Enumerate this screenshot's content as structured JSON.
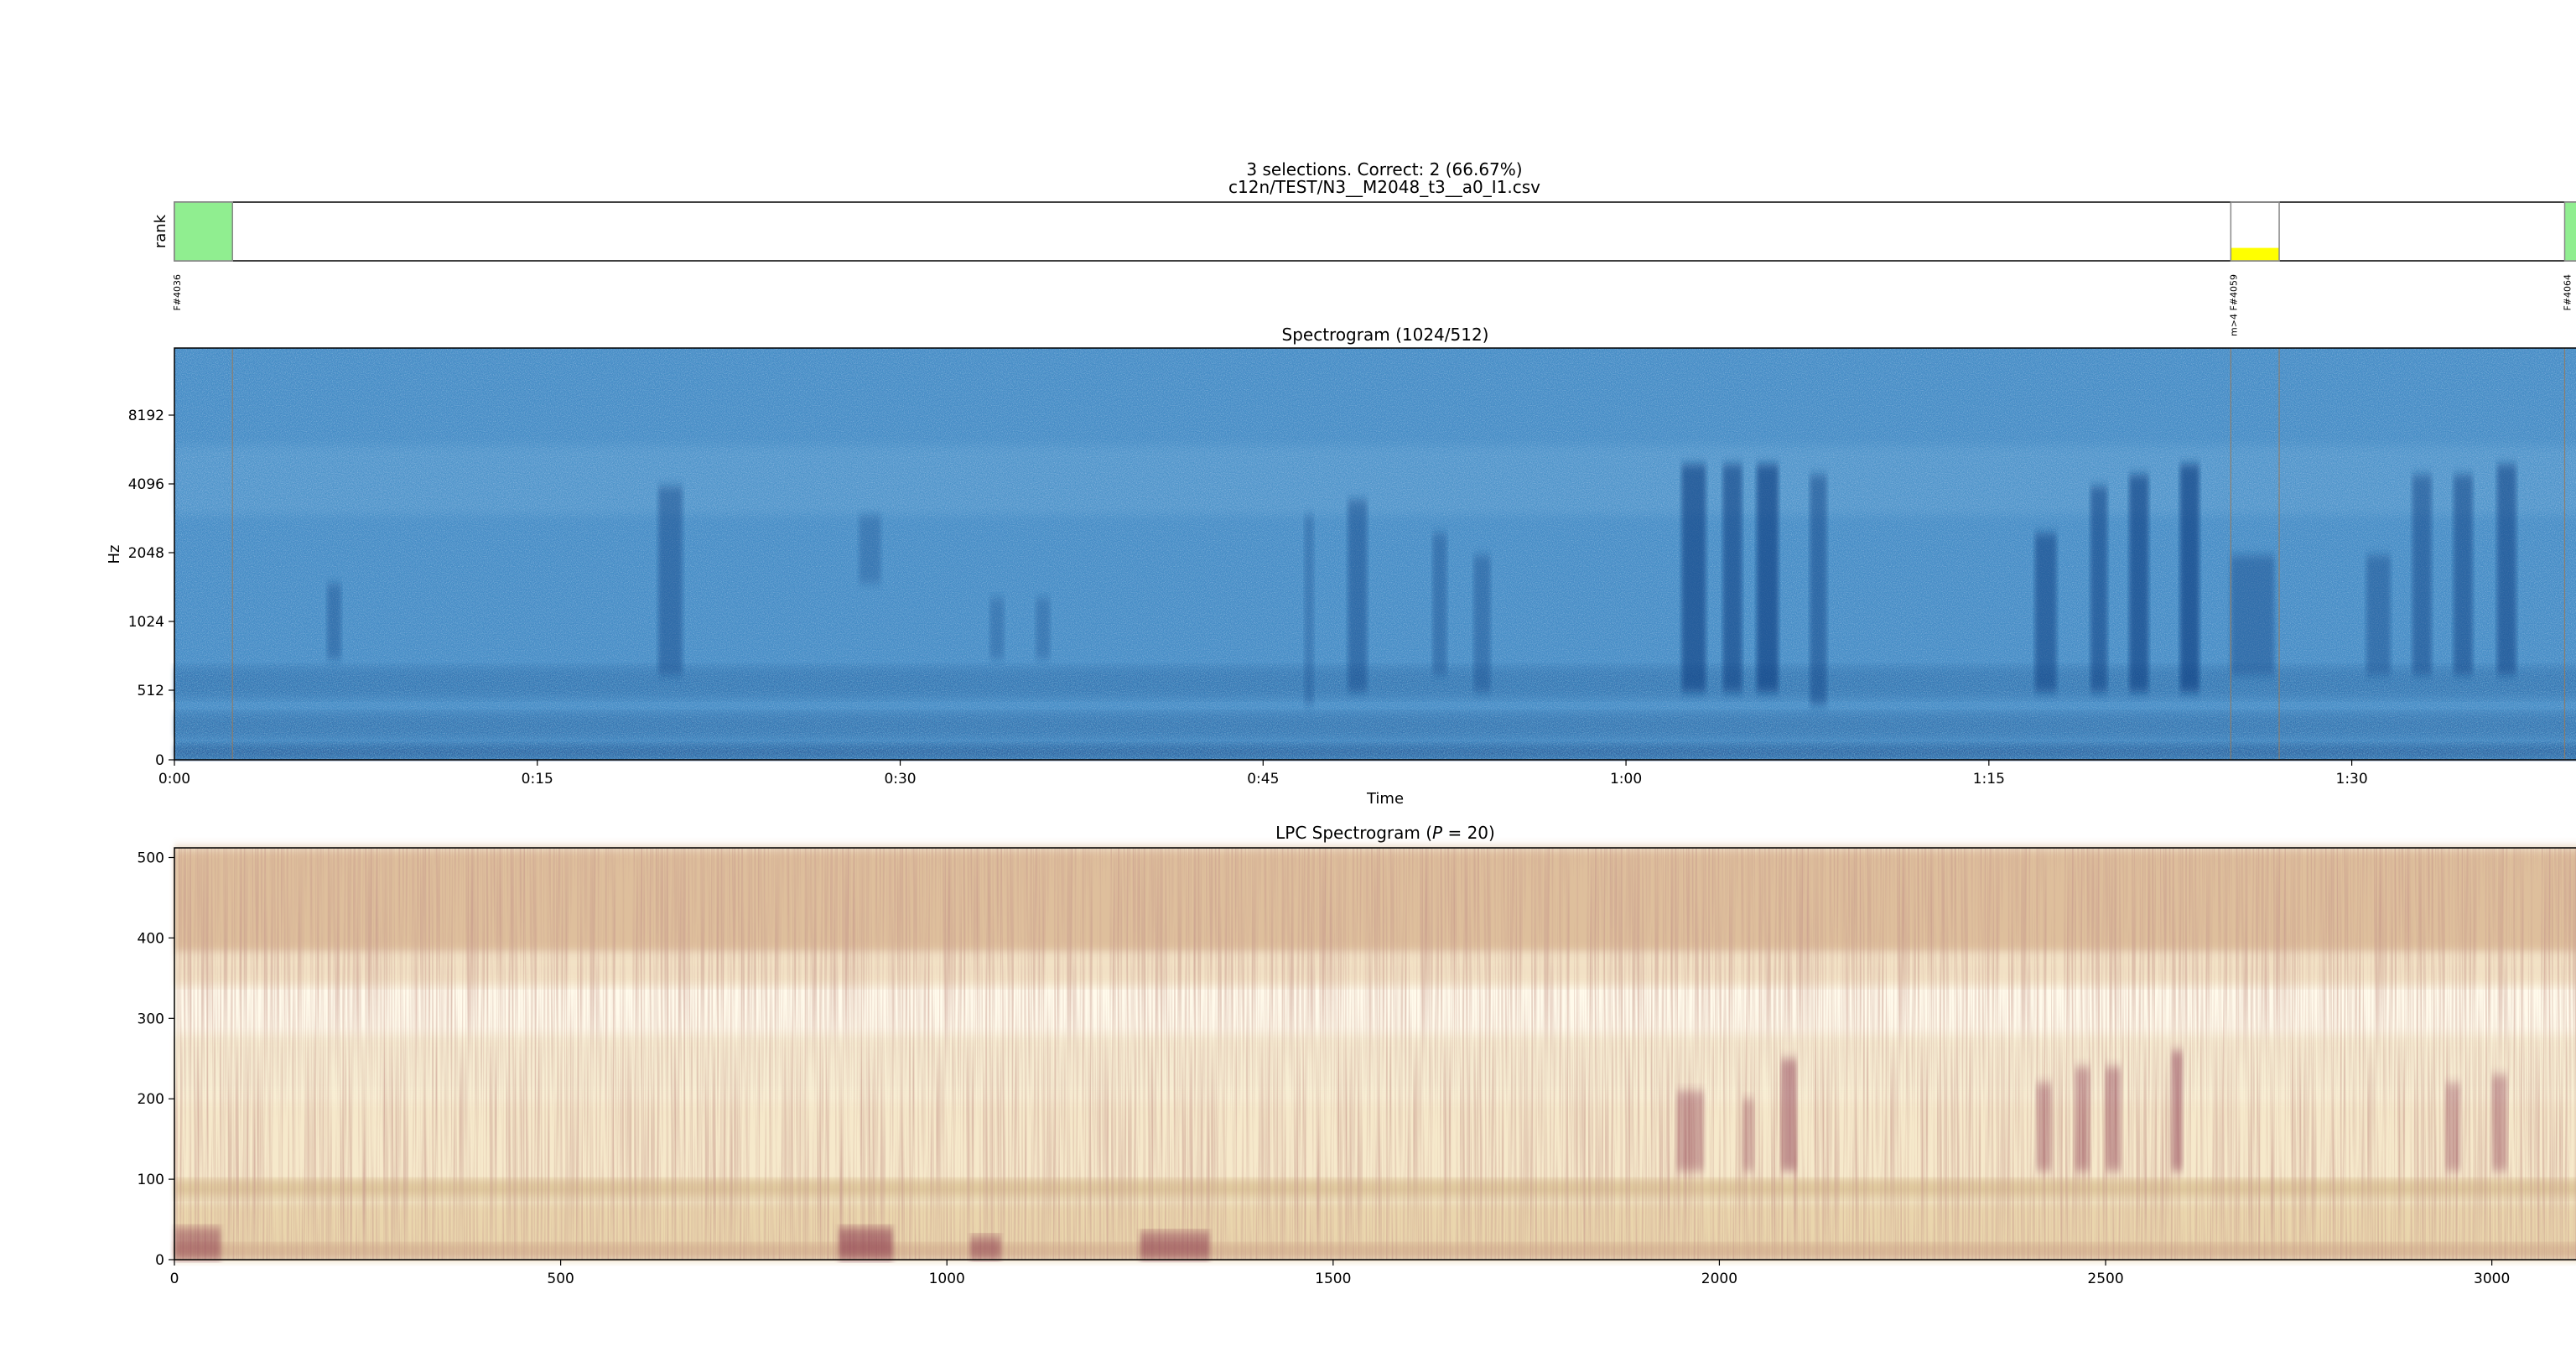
{
  "figure": {
    "title_line1": "3 selections.  Correct: 2 (66.67%)",
    "title_line2": "c12n/TEST/N3__M2048_t3__a0_I1.csv",
    "colors": {
      "correct": "#90ee90",
      "partial": "#ffff00",
      "outline": "#888888",
      "spectrogram_base": "#3a7ab8",
      "spectrogram_dark": "#0d3d80",
      "lpc_light": "#fffaeb",
      "lpc_mid": "#e6cf9c",
      "lpc_dark": "#7a1f3d"
    }
  },
  "chart_data": [
    {
      "type": "bar",
      "panel": "selections",
      "ylabel": "rank",
      "xlim_seconds": [
        0,
        100.1
      ],
      "selections": [
        {
          "label": "F#4036",
          "start": 0.0,
          "end": 2.4,
          "status": "correct",
          "fill_fraction": 1.0
        },
        {
          "label": "m>4 F#4059",
          "start": 85.0,
          "end": 87.0,
          "status": "partial",
          "fill_fraction": 0.22
        },
        {
          "label": "F#4064",
          "start": 98.8,
          "end": 100.1,
          "status": "correct",
          "fill_fraction": 1.0
        }
      ]
    },
    {
      "type": "heatmap",
      "panel": "spectrogram",
      "title": "Spectrogram (1024/512)",
      "xlabel": "Time",
      "ylabel": "Hz",
      "xlim_seconds": [
        0,
        100.1
      ],
      "x_ticks": [
        {
          "value": 0,
          "label": "0:00"
        },
        {
          "value": 15,
          "label": "0:15"
        },
        {
          "value": 30,
          "label": "0:30"
        },
        {
          "value": 45,
          "label": "0:45"
        },
        {
          "value": 60,
          "label": "1:00"
        },
        {
          "value": 75,
          "label": "1:15"
        },
        {
          "value": 90,
          "label": "1:30"
        }
      ],
      "y_scale": "log",
      "y_ticks": [
        {
          "value": 0,
          "label": "0"
        },
        {
          "value": 512,
          "label": "512"
        },
        {
          "value": 1024,
          "label": "1024"
        },
        {
          "value": 2048,
          "label": "2048"
        },
        {
          "value": 4096,
          "label": "4096"
        },
        {
          "value": 8192,
          "label": "8192"
        }
      ],
      "selection_markers_seconds": [
        2.4,
        85.0,
        87.0,
        98.8
      ],
      "events": [
        {
          "start": 6.3,
          "end": 6.9,
          "fmin": 700,
          "fmax": 1500,
          "strength": 0.45
        },
        {
          "start": 20.0,
          "end": 21.0,
          "fmin": 600,
          "fmax": 4000,
          "strength": 0.55
        },
        {
          "start": 28.3,
          "end": 29.2,
          "fmin": 1500,
          "fmax": 3000,
          "strength": 0.35
        },
        {
          "start": 33.7,
          "end": 34.3,
          "fmin": 700,
          "fmax": 1300,
          "strength": 0.35
        },
        {
          "start": 35.6,
          "end": 36.2,
          "fmin": 700,
          "fmax": 1300,
          "strength": 0.35
        },
        {
          "start": 46.7,
          "end": 47.1,
          "fmin": 400,
          "fmax": 3000,
          "strength": 0.35
        },
        {
          "start": 48.5,
          "end": 49.3,
          "fmin": 500,
          "fmax": 3500,
          "strength": 0.55
        },
        {
          "start": 52.0,
          "end": 52.6,
          "fmin": 600,
          "fmax": 2500,
          "strength": 0.45
        },
        {
          "start": 53.7,
          "end": 54.4,
          "fmin": 500,
          "fmax": 2000,
          "strength": 0.45
        },
        {
          "start": 62.3,
          "end": 63.3,
          "fmin": 500,
          "fmax": 5000,
          "strength": 0.8
        },
        {
          "start": 64.0,
          "end": 64.8,
          "fmin": 500,
          "fmax": 5000,
          "strength": 0.75
        },
        {
          "start": 65.4,
          "end": 66.3,
          "fmin": 500,
          "fmax": 5000,
          "strength": 0.85
        },
        {
          "start": 67.6,
          "end": 68.3,
          "fmin": 400,
          "fmax": 4500,
          "strength": 0.6
        },
        {
          "start": 76.9,
          "end": 77.8,
          "fmin": 500,
          "fmax": 2500,
          "strength": 0.7
        },
        {
          "start": 79.2,
          "end": 79.9,
          "fmin": 500,
          "fmax": 4000,
          "strength": 0.7
        },
        {
          "start": 80.8,
          "end": 81.6,
          "fmin": 500,
          "fmax": 4500,
          "strength": 0.8
        },
        {
          "start": 82.9,
          "end": 83.7,
          "fmin": 500,
          "fmax": 5000,
          "strength": 0.85
        },
        {
          "start": 85.0,
          "end": 86.8,
          "fmin": 600,
          "fmax": 2000,
          "strength": 0.5
        },
        {
          "start": 90.6,
          "end": 91.6,
          "fmin": 600,
          "fmax": 2000,
          "strength": 0.5
        },
        {
          "start": 92.5,
          "end": 93.3,
          "fmin": 600,
          "fmax": 4500,
          "strength": 0.6
        },
        {
          "start": 94.2,
          "end": 95.0,
          "fmin": 600,
          "fmax": 4500,
          "strength": 0.65
        },
        {
          "start": 96.0,
          "end": 96.8,
          "fmin": 600,
          "fmax": 5000,
          "strength": 0.7
        }
      ]
    },
    {
      "type": "heatmap",
      "panel": "lpc_spectrogram",
      "title_prefix": "LPC Spectrogram (",
      "title_var": "P",
      "title_suffix": " = 20)",
      "xlim": [
        0,
        3135
      ],
      "ylim": [
        0,
        512
      ],
      "x_ticks": [
        0,
        500,
        1000,
        1500,
        2000,
        2500,
        3000
      ],
      "y_ticks": [
        0,
        100,
        200,
        300,
        400,
        500
      ],
      "events": [
        {
          "start": 1945,
          "end": 1980,
          "ymin": 110,
          "ymax": 210,
          "strength": 0.55
        },
        {
          "start": 2030,
          "end": 2045,
          "ymin": 110,
          "ymax": 200,
          "strength": 0.45
        },
        {
          "start": 2080,
          "end": 2100,
          "ymin": 110,
          "ymax": 250,
          "strength": 0.7
        },
        {
          "start": 2410,
          "end": 2430,
          "ymin": 110,
          "ymax": 220,
          "strength": 0.55
        },
        {
          "start": 2460,
          "end": 2480,
          "ymin": 110,
          "ymax": 240,
          "strength": 0.55
        },
        {
          "start": 2500,
          "end": 2520,
          "ymin": 110,
          "ymax": 240,
          "strength": 0.6
        },
        {
          "start": 2585,
          "end": 2600,
          "ymin": 110,
          "ymax": 260,
          "strength": 0.7
        },
        {
          "start": 2940,
          "end": 2960,
          "ymin": 110,
          "ymax": 220,
          "strength": 0.5
        },
        {
          "start": 3000,
          "end": 3020,
          "ymin": 110,
          "ymax": 230,
          "strength": 0.55
        },
        {
          "start": 860,
          "end": 930,
          "ymin": 0,
          "ymax": 40,
          "strength": 0.85
        },
        {
          "start": 1030,
          "end": 1070,
          "ymin": 0,
          "ymax": 30,
          "strength": 0.7
        },
        {
          "start": 1250,
          "end": 1340,
          "ymin": 0,
          "ymax": 35,
          "strength": 0.75
        },
        {
          "start": 0,
          "end": 60,
          "ymin": 0,
          "ymax": 40,
          "strength": 0.7
        }
      ]
    }
  ]
}
